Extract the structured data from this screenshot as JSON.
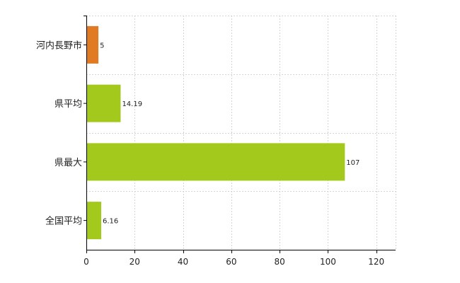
{
  "chart_data": {
    "type": "bar",
    "orientation": "horizontal",
    "categories": [
      "河内長野市",
      "県平均",
      "県最大",
      "全国平均"
    ],
    "values": [
      5,
      14.19,
      107,
      6.16
    ],
    "value_labels": [
      "5",
      "14.19",
      "107",
      "6.16"
    ],
    "bar_colors": [
      "#e07b24",
      "#a3c91d",
      "#a3c91d",
      "#a3c91d"
    ],
    "xlim": [
      0,
      128
    ],
    "xticks": [
      0,
      20,
      40,
      60,
      80,
      100,
      120
    ],
    "xtick_labels": [
      "0",
      "20",
      "40",
      "60",
      "80",
      "100",
      "120"
    ],
    "grid": true,
    "legend": "none"
  }
}
